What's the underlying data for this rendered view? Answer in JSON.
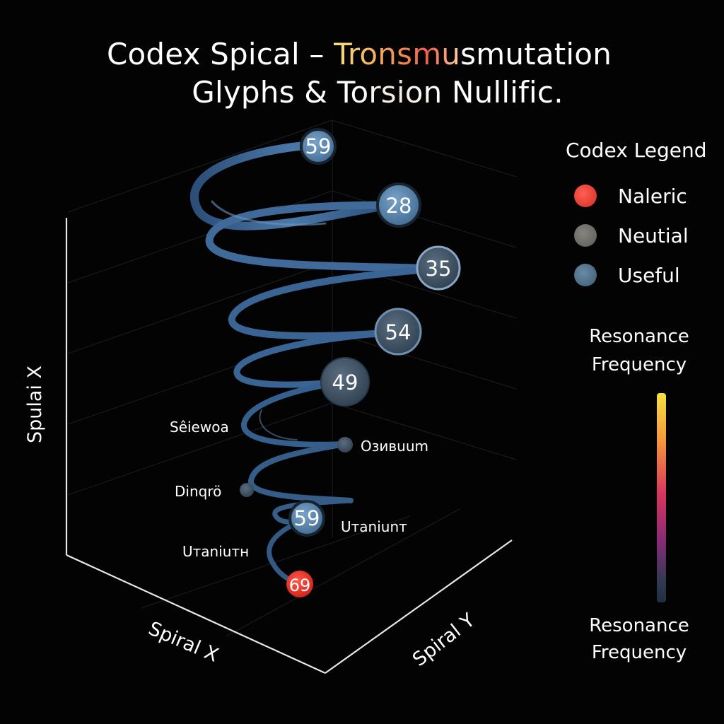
{
  "title": {
    "line1_pre": "Codex Spical – ",
    "line1_highlight": "Tronsmu",
    "line1_post": "smutation",
    "line2_pre": "Glyphs & T",
    "line2_highlight": "orsion",
    "line2_post": " Nullific."
  },
  "colors": {
    "background": "#030303",
    "spiral": "#3f6a9a",
    "useful": "#4f7fa8",
    "neutral_node": "#3a4f62",
    "naleric": "#e3302a"
  },
  "legend": {
    "title": "Codex Legend",
    "items": [
      {
        "label": "Naleric",
        "color": "#e23a30"
      },
      {
        "label": "Neutial",
        "color": "#6b6a66"
      },
      {
        "label": "Useful",
        "color": "#4d6a82"
      }
    ]
  },
  "colorbar": {
    "title": "Resonance\nFrequency",
    "label": "Resonance\nFrequency"
  },
  "chart_data": {
    "type": "scatter",
    "title": "Codex Spical – Tronsmusmutation Glyphs & Torsion Nullific.",
    "axes": {
      "vertical": "Spulai X",
      "x": "Spiral X",
      "y": "Spiral Y"
    },
    "points": [
      {
        "value": "59",
        "category": "Useful"
      },
      {
        "value": "28",
        "category": "Useful"
      },
      {
        "value": "35",
        "category": "Neutial"
      },
      {
        "value": "54",
        "category": "Neutial"
      },
      {
        "value": "49",
        "category": "Neutial"
      },
      {
        "value": "",
        "label": "Oзивuum",
        "category": "Neutial"
      },
      {
        "value": "",
        "label": "Dinqrö",
        "category": "Neutial"
      },
      {
        "value": "59",
        "label": "Uтaniunт",
        "category": "Useful"
      },
      {
        "value": "69",
        "category": "Naleric"
      }
    ],
    "annotations": [
      "Sêiewoa",
      "Uтaniuтн"
    ]
  }
}
